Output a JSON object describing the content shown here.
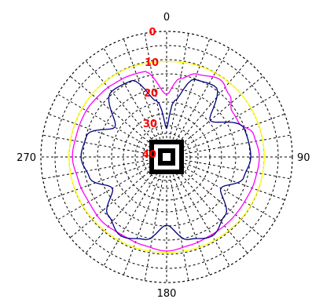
{
  "chart_data": {
    "type": "line",
    "subtype": "polar",
    "title": "",
    "angle_unit": "degrees",
    "angle_direction": "clockwise",
    "angle_zero": "top",
    "angle_tick_labels": [
      "0",
      "90",
      "180",
      "270"
    ],
    "radial_tick_labels": [
      "0",
      "10",
      "20",
      "30",
      "40"
    ],
    "radial_range": [
      -40,
      0
    ],
    "radial_unit": "dB",
    "grid": true,
    "grid_style": "dotted",
    "colors": {
      "ring_labels": "#ff0000",
      "axis_labels": "#000000",
      "grid": "#000000"
    },
    "series": [
      {
        "color": "#ffff00",
        "angles": [
          0,
          30,
          60,
          90,
          120,
          150,
          180,
          210,
          240,
          270,
          300,
          330,
          360
        ],
        "values": [
          -10.5,
          -10,
          -9.8,
          -9.8,
          -10,
          -10.3,
          -10.5,
          -10.3,
          -10,
          -9.8,
          -9.8,
          -10,
          -10.5
        ]
      },
      {
        "color": "#ff00ff",
        "angles": [
          0,
          10,
          20,
          35,
          45,
          55,
          65,
          75,
          90,
          105,
          120,
          135,
          150,
          165,
          180,
          195,
          210,
          225,
          240,
          255,
          270,
          285,
          300,
          315,
          330,
          345,
          360
        ],
        "values": [
          -22,
          -16,
          -13,
          -11,
          -13,
          -16,
          -16,
          -12.5,
          -11.5,
          -12,
          -12.5,
          -12.5,
          -12.5,
          -12,
          -11,
          -12,
          -12.5,
          -12,
          -12.5,
          -12,
          -11,
          -11.5,
          -11.5,
          -12,
          -12.5,
          -13,
          -22
        ]
      },
      {
        "color": "#000080",
        "angles": [
          0,
          8,
          20,
          35,
          50,
          70,
          90,
          105,
          120,
          135,
          150,
          165,
          180,
          195,
          210,
          225,
          240,
          255,
          270,
          285,
          300,
          320,
          335,
          350,
          360
        ],
        "values": [
          -34,
          -24,
          -15,
          -14,
          -24,
          -15,
          -14.5,
          -16,
          -22,
          -15,
          -12,
          -14,
          -20,
          -14,
          -12,
          -15,
          -22,
          -16,
          -14,
          -15,
          -23,
          -14,
          -14.5,
          -24,
          -34
        ]
      }
    ]
  }
}
